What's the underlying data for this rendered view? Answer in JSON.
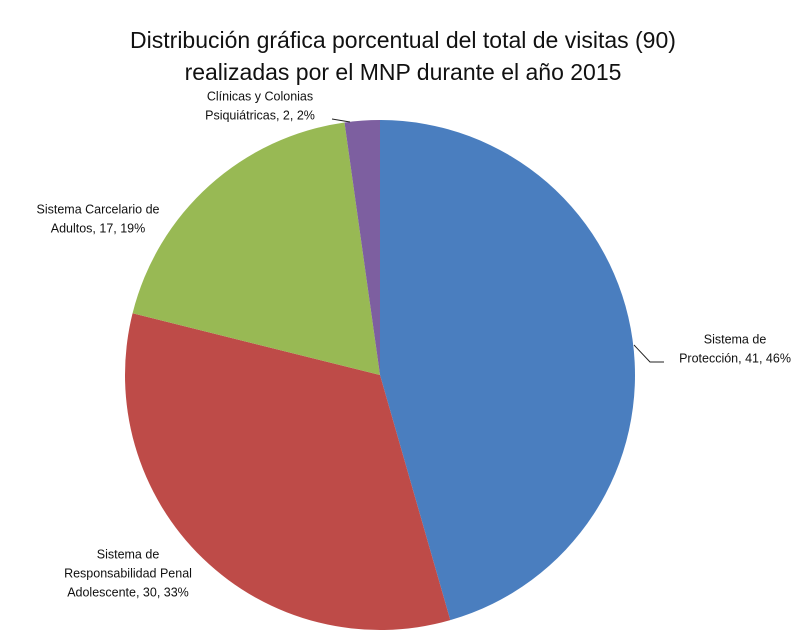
{
  "chart_data": {
    "type": "pie",
    "title": [
      "Distribución gráfica porcentual del total de visitas (90)",
      "realizadas por el MNP durante el año 2015"
    ],
    "labels": [
      [
        "Sistema de",
        "Protección, 41, 46%"
      ],
      [
        "Sistema de",
        "Responsabilidad Penal",
        "Adolescente, 30, 33%"
      ],
      [
        "Sistema Carcelario de",
        "Adultos, 17, 19%"
      ],
      [
        "Clínicas y Colonias",
        "Psiquiátricas, 2, 2%"
      ]
    ],
    "values": [
      41,
      30,
      17,
      2
    ],
    "colors": [
      "#4a7ebf",
      "#be4b48",
      "#98b954",
      "#7d5fa0"
    ]
  }
}
